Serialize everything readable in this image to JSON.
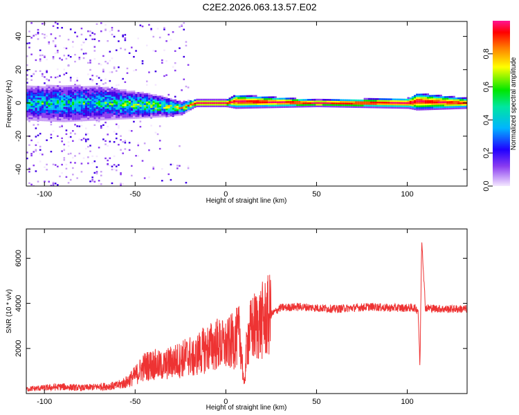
{
  "title": "C2E2.2026.063.13.57.E02",
  "chart_data": [
    {
      "type": "heatmap",
      "xlabel": "Height of straight line (km)",
      "ylabel": "Frequency (Hz)",
      "xlim": [
        -110,
        133
      ],
      "ylim": [
        -50,
        49
      ],
      "xticks": [
        -100,
        -50,
        0,
        50,
        100
      ],
      "yticks": [
        -40,
        -20,
        0,
        20,
        40
      ],
      "colorbar": {
        "label": "Normalized spectral amplitude",
        "range": [
          0,
          1
        ],
        "ticks": [
          "0.0",
          "0.2",
          "0.4",
          "0.6",
          "0.8"
        ],
        "colors": [
          "#f4e8ff",
          "#c9a0f5",
          "#8a3cf0",
          "#4000e6",
          "#0050ff",
          "#00b4ff",
          "#00e6c8",
          "#00e600",
          "#b4ff00",
          "#ffff00",
          "#ffb400",
          "#ff5000",
          "#ff0000",
          "#ff0060",
          "#ff1493"
        ]
      },
      "ridge": [
        {
          "x": -110,
          "y": 0,
          "width": 10,
          "amplitude": 0.5
        },
        {
          "x": -90,
          "y": 0,
          "width": 11,
          "amplitude": 0.5
        },
        {
          "x": -70,
          "y": 0,
          "width": 10,
          "amplitude": 0.5
        },
        {
          "x": -50,
          "y": -1,
          "width": 8,
          "amplitude": 0.6
        },
        {
          "x": -35,
          "y": -2,
          "width": 6,
          "amplitude": 0.65
        },
        {
          "x": -25,
          "y": -3,
          "width": 4,
          "amplitude": 0.7
        },
        {
          "x": -17,
          "y": 0,
          "width": 2,
          "amplitude": 0.95
        },
        {
          "x": 0,
          "y": 0,
          "width": 2,
          "amplitude": 0.95
        },
        {
          "x": 5,
          "y": 1,
          "width": 4,
          "amplitude": 0.95
        },
        {
          "x": 50,
          "y": 0,
          "width": 2,
          "amplitude": 0.95
        },
        {
          "x": 100,
          "y": 0,
          "width": 3,
          "amplitude": 0.95
        },
        {
          "x": 105,
          "y": 1,
          "width": 5,
          "amplitude": 0.95
        },
        {
          "x": 133,
          "y": 0,
          "width": 3,
          "amplitude": 0.9
        }
      ]
    },
    {
      "type": "line",
      "xlabel": "Height of straight line (km)",
      "ylabel": "SNR (10 * v/v)",
      "xlim": [
        -110,
        133
      ],
      "ylim": [
        0,
        7300
      ],
      "xticks": [
        -100,
        -50,
        0,
        50,
        100
      ],
      "yticks": [
        2000,
        4000,
        6000
      ],
      "color": "#ee3333",
      "series": [
        {
          "x": [
            -110,
            -100,
            -90,
            -80,
            -70,
            -60,
            -55,
            -50,
            -45,
            -40,
            -35,
            -30,
            -25,
            -20,
            -18,
            -15,
            -10,
            -5,
            0,
            5,
            8,
            10,
            12,
            15,
            20,
            25,
            30,
            40,
            50,
            60,
            70,
            80,
            90,
            100,
            104,
            106,
            107,
            108,
            110,
            120,
            133
          ],
          "y": [
            200,
            250,
            300,
            250,
            300,
            350,
            500,
            800,
            1200,
            1300,
            1200,
            1400,
            1500,
            1700,
            1500,
            1800,
            2000,
            2200,
            2100,
            2400,
            2600,
            300,
            2500,
            2900,
            3200,
            3500,
            3800,
            3850,
            3800,
            3750,
            3800,
            3850,
            3800,
            3800,
            3800,
            3700,
            1200,
            6900,
            3800,
            3750,
            3750
          ]
        }
      ]
    }
  ]
}
